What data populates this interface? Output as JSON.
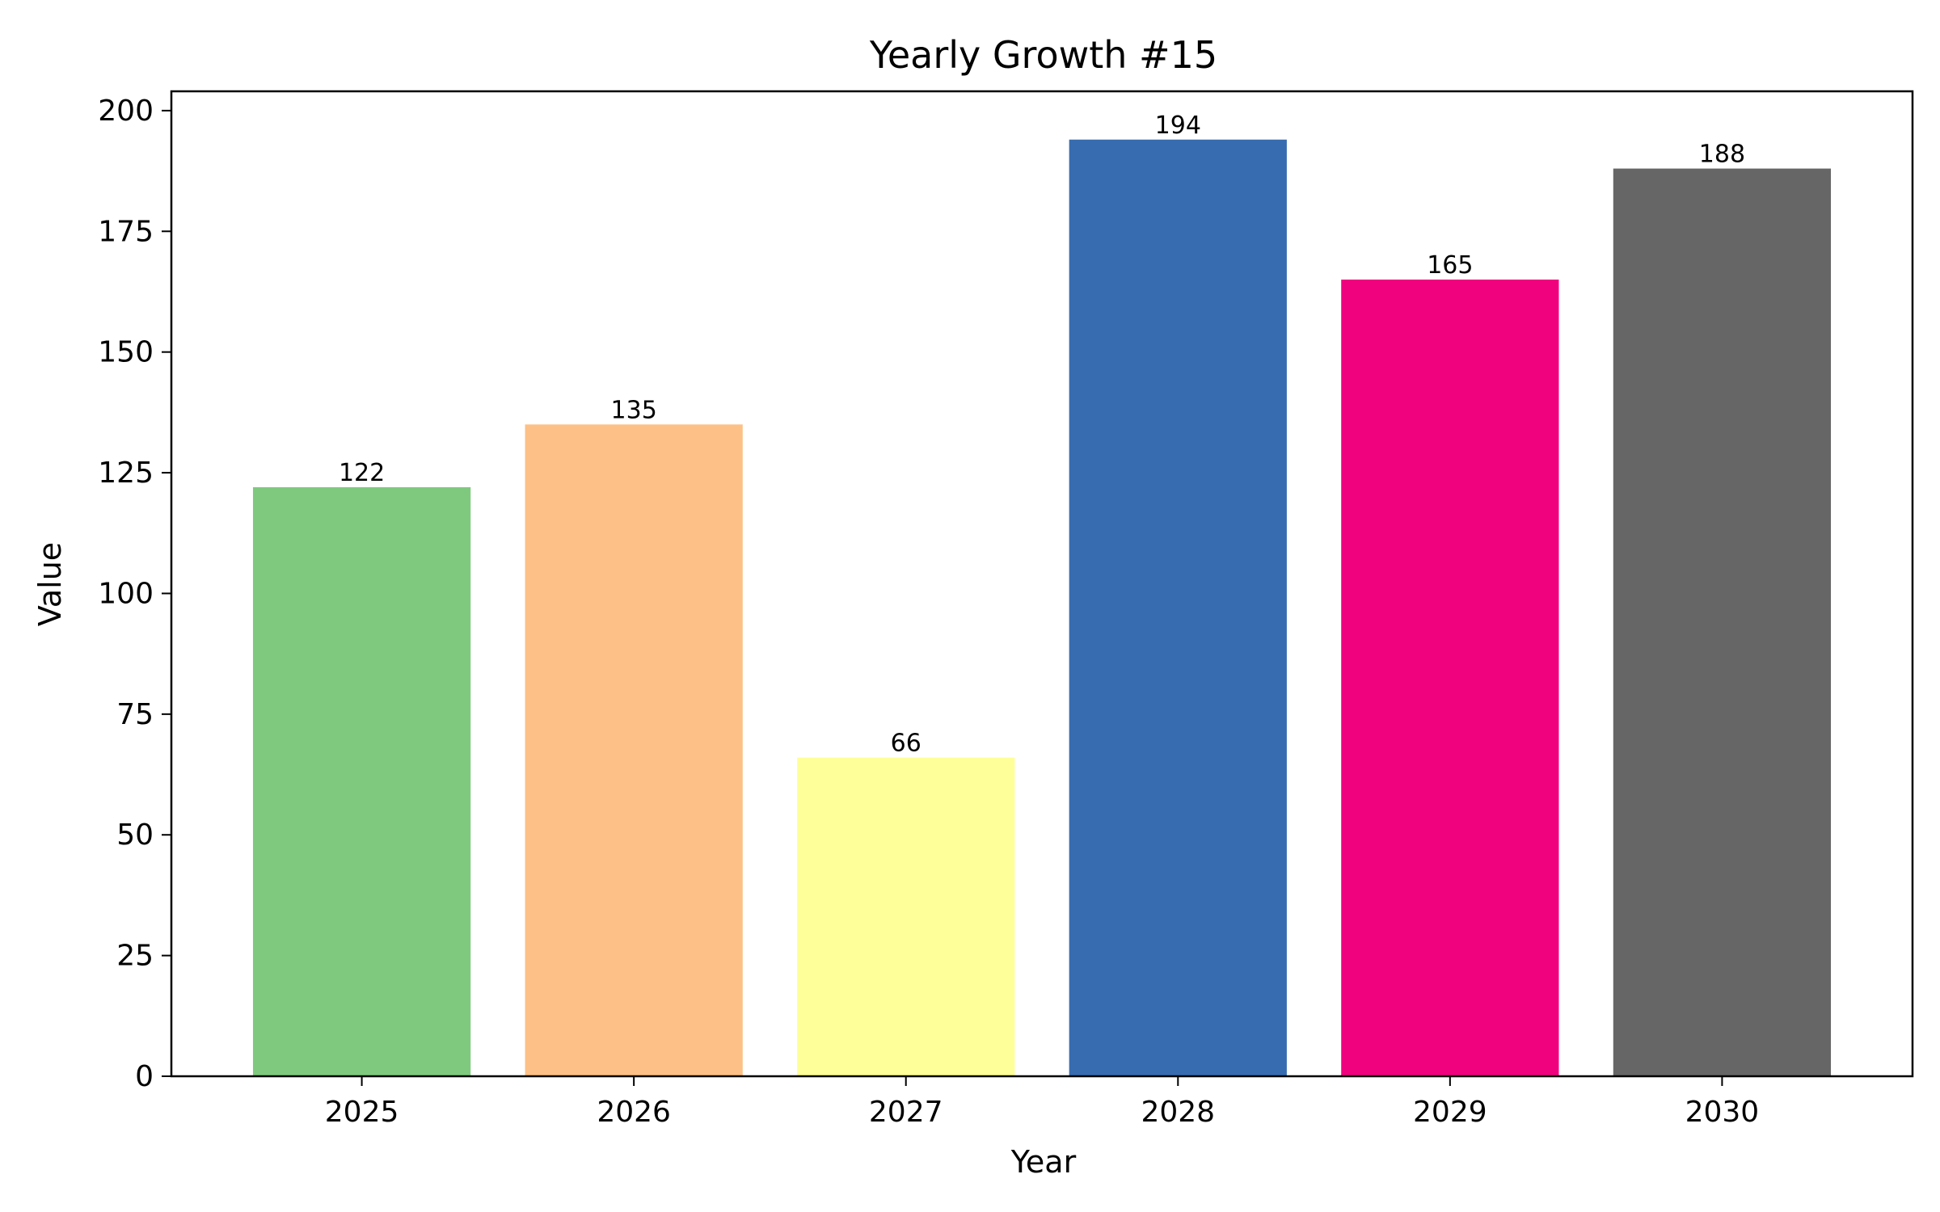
{
  "chart_data": {
    "type": "bar",
    "title": "Yearly Growth #15",
    "xlabel": "Year",
    "ylabel": "Value",
    "categories": [
      "2025",
      "2026",
      "2027",
      "2028",
      "2029",
      "2030"
    ],
    "values": [
      122,
      135,
      66,
      194,
      165,
      188
    ],
    "colors": [
      "#7fc97f",
      "#fdc086",
      "#ffff99",
      "#386cb0",
      "#f0027f",
      "#666666"
    ],
    "ylim": [
      0,
      204
    ],
    "yticks": [
      0,
      25,
      50,
      75,
      100,
      125,
      150,
      175,
      200
    ],
    "data_labels": [
      "122",
      "135",
      "66",
      "194",
      "165",
      "188"
    ],
    "grid": false,
    "legend": "none"
  }
}
